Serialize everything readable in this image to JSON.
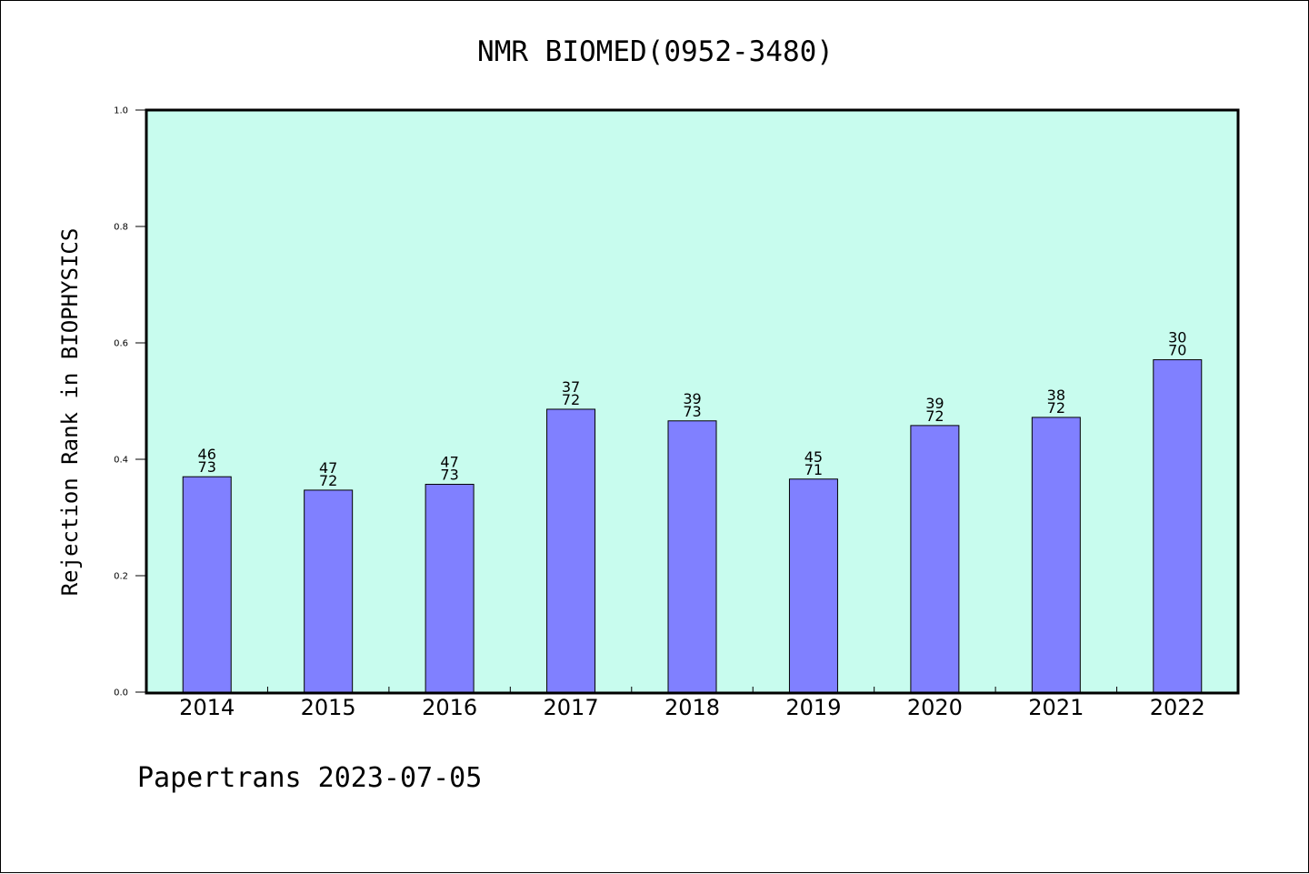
{
  "chart_data": {
    "type": "bar",
    "title": "NMR BIOMED(0952-3480)",
    "ylabel": "Rejection Rank in BIOPHYSICS",
    "xlabel": "",
    "categories": [
      "2014",
      "2015",
      "2016",
      "2017",
      "2018",
      "2019",
      "2020",
      "2021",
      "2022"
    ],
    "values": [
      0.37,
      0.347,
      0.357,
      0.486,
      0.466,
      0.366,
      0.458,
      0.472,
      0.571
    ],
    "data_labels": [
      [
        "46",
        "73"
      ],
      [
        "47",
        "72"
      ],
      [
        "47",
        "73"
      ],
      [
        "37",
        "72"
      ],
      [
        "39",
        "73"
      ],
      [
        "45",
        "71"
      ],
      [
        "39",
        "72"
      ],
      [
        "38",
        "72"
      ],
      [
        "30",
        "70"
      ]
    ],
    "ylim": [
      0,
      1.0
    ],
    "yticks": [
      "0.0",
      "0.2",
      "0.4",
      "0.6",
      "0.8",
      "1.0"
    ],
    "grid": false,
    "colors": {
      "plot_background": "#c8fcee",
      "bar_fill": "#8080ff",
      "bar_stroke": "#000000"
    }
  },
  "footer": {
    "text": "Papertrans 2023-07-05"
  }
}
